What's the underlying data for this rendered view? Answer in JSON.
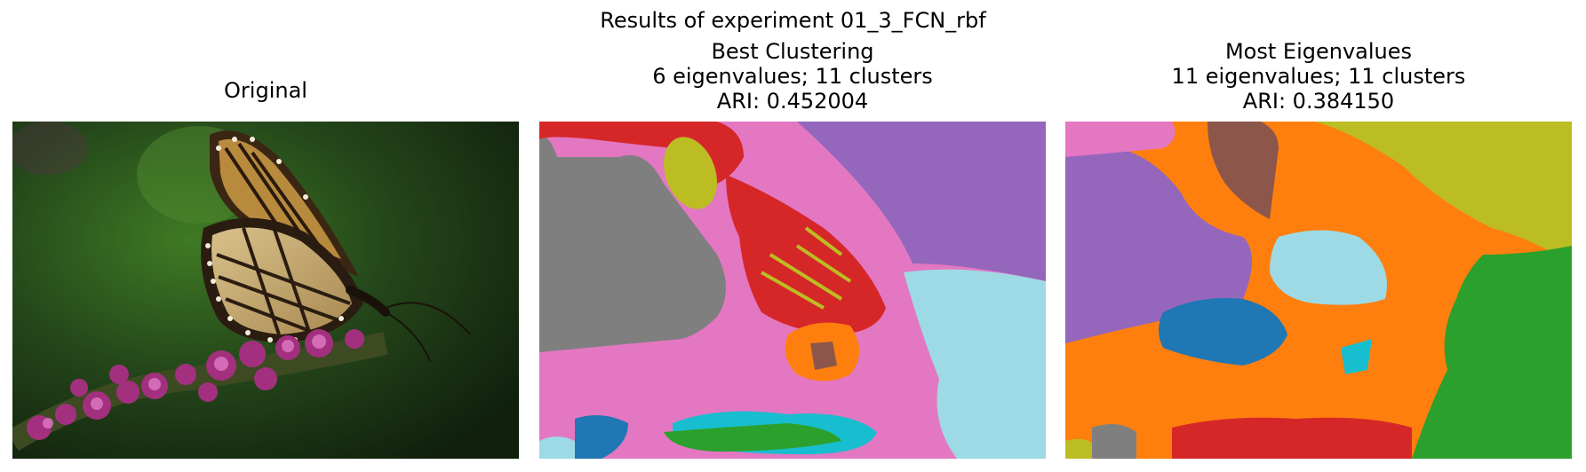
{
  "figure": {
    "suptitle": "Results of experiment 01_3_FCN_rbf"
  },
  "panels": [
    {
      "title_lines": [
        "Original"
      ]
    },
    {
      "title_lines": [
        "Best Clustering",
        "6 eigenvalues; 11 clusters",
        "ARI: 0.452004"
      ]
    },
    {
      "title_lines": [
        "Most Eigenvalues",
        "11 eigenvalues; 11 clusters",
        "ARI: 0.384150"
      ]
    }
  ],
  "cluster_palette": {
    "blue": "#1f77b4",
    "orange": "#ff7f0e",
    "green": "#2ca02c",
    "red": "#d62728",
    "purple": "#9467bd",
    "brown": "#8c564b",
    "pink": "#e377c2",
    "gray": "#7f7f7f",
    "olive": "#bcbd22",
    "cyan": "#17becf",
    "light_cyan": "#9edae5"
  }
}
